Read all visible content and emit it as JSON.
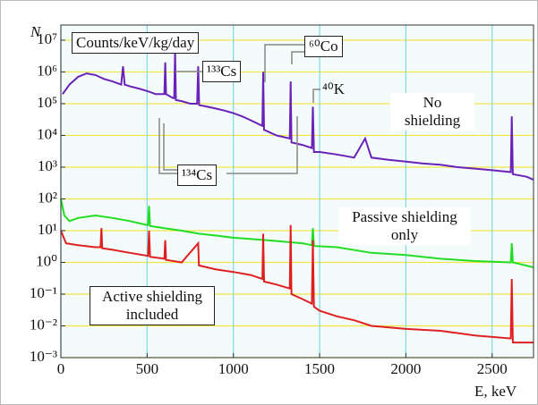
{
  "chart_data": {
    "type": "line",
    "log_y": true,
    "grid": true,
    "y_label": "N",
    "x_label": "E, keV",
    "unit_label": "Counts/keV/kg/day",
    "annotations": [
      "¹³³Cs",
      "⁶⁰Co",
      "⁴⁰K",
      "¹³⁴Cs"
    ],
    "xlim": [
      0,
      2740
    ],
    "xticks": [
      0,
      500,
      1000,
      1500,
      2000,
      2500
    ],
    "ylim": [
      0.001,
      30000000
    ],
    "yticks": [
      {
        "value": 0.001,
        "label": "10⁻³"
      },
      {
        "value": 0.01,
        "label": "10⁻²"
      },
      {
        "value": 0.1,
        "label": "10⁻¹"
      },
      {
        "value": 1,
        "label": "10⁰"
      },
      {
        "value": 10,
        "label": "10¹"
      },
      {
        "value": 100,
        "label": "10²"
      },
      {
        "value": 1000,
        "label": "10³"
      },
      {
        "value": 10000,
        "label": "10⁴"
      },
      {
        "value": 100000,
        "label": "10⁵"
      },
      {
        "value": 1000000,
        "label": "10⁶"
      },
      {
        "value": 10000000,
        "label": "10⁷"
      }
    ],
    "series": [
      {
        "name": "No shielding",
        "color": "#6a22b8",
        "x": [
          10,
          50,
          100,
          150,
          200,
          250,
          300,
          350,
          360,
          370,
          400,
          450,
          500,
          550,
          600,
          605,
          610,
          650,
          657,
          662,
          667,
          700,
          750,
          790,
          796,
          802,
          850,
          900,
          950,
          1000,
          1050,
          1100,
          1168,
          1173,
          1178,
          1250,
          1327,
          1332,
          1337,
          1400,
          1455,
          1461,
          1467,
          1500,
          1600,
          1700,
          1764,
          1800,
          1900,
          2000,
          2100,
          2200,
          2300,
          2400,
          2500,
          2608,
          2614,
          2620,
          2700,
          2740
        ],
        "values": [
          200000,
          400000,
          700000,
          900000,
          800000,
          600000,
          500000,
          400000,
          1500000,
          400000,
          350000,
          300000,
          250000,
          200000,
          200000,
          2000000,
          200000,
          150000,
          150000,
          5000000,
          130000,
          120000,
          100000,
          100000,
          1500000,
          90000,
          80000,
          70000,
          60000,
          50000,
          40000,
          30000,
          20000,
          1000000,
          15000,
          10000,
          8000,
          500000,
          6000,
          5000,
          4000,
          80000,
          3000,
          3000,
          2500,
          2000,
          8000,
          2000,
          1700,
          1500,
          1300,
          1200,
          1000,
          900,
          800,
          700,
          40000,
          600,
          500,
          400
        ]
      },
      {
        "name": "Passive shielding only",
        "color": "#22dd22",
        "x": [
          0,
          20,
          50,
          100,
          200,
          300,
          400,
          500,
          505,
          511,
          517,
          600,
          700,
          800,
          900,
          1000,
          1200,
          1400,
          1455,
          1461,
          1467,
          1600,
          1800,
          2000,
          2200,
          2400,
          2608,
          2614,
          2620,
          2740
        ],
        "values": [
          100,
          30,
          20,
          25,
          30,
          25,
          20,
          15,
          15,
          60,
          14,
          12,
          10,
          8,
          7,
          6,
          5,
          4,
          3.5,
          12,
          3.3,
          3,
          2,
          1.7,
          1.3,
          1.1,
          1,
          4,
          1,
          0.7
        ]
      },
      {
        "name": "Active shielding included",
        "color": "#e02020",
        "x": [
          0,
          30,
          100,
          200,
          230,
          235,
          240,
          300,
          400,
          505,
          511,
          517,
          600,
          605,
          610,
          700,
          796,
          800,
          900,
          1000,
          1100,
          1168,
          1173,
          1178,
          1250,
          1327,
          1332,
          1337,
          1400,
          1455,
          1461,
          1467,
          1500,
          1600,
          1700,
          1800,
          2000,
          2200,
          2400,
          2608,
          2614,
          2620,
          2740
        ],
        "values": [
          10,
          4,
          3.5,
          3,
          3,
          12,
          2.8,
          2.5,
          2,
          1.6,
          10,
          1.5,
          1.3,
          5,
          1.2,
          1,
          4,
          0.8,
          0.6,
          0.5,
          0.4,
          0.3,
          8,
          0.25,
          0.2,
          0.15,
          15,
          0.1,
          0.07,
          0.05,
          5,
          0.04,
          0.03,
          0.02,
          0.015,
          0.01,
          0.008,
          0.007,
          0.005,
          0.004,
          0.3,
          0.003,
          0.003
        ]
      }
    ]
  }
}
